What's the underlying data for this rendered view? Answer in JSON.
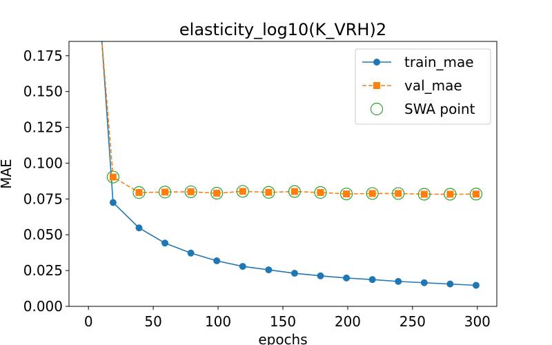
{
  "chart_data": {
    "type": "line",
    "title": "elasticity_log10(K_VRH)2",
    "xlabel": "epochs",
    "ylabel": "MAE",
    "xlim": [
      -15,
      315
    ],
    "ylim": [
      0,
      0.185
    ],
    "xticks": [
      0,
      50,
      100,
      150,
      200,
      250,
      300
    ],
    "yticks": [
      0.0,
      0.025,
      0.05,
      0.075,
      0.1,
      0.125,
      0.15,
      0.175
    ],
    "xtick_labels": [
      "0",
      "50",
      "100",
      "150",
      "200",
      "250",
      "300"
    ],
    "ytick_labels": [
      "0.000",
      "0.025",
      "0.050",
      "0.075",
      "0.100",
      "0.125",
      "0.150",
      "0.175"
    ],
    "grid": false,
    "legend_position": "top-right",
    "series": [
      {
        "name": "train_mae",
        "color": "#1f77b4",
        "marker": "circle",
        "linestyle": "solid",
        "x": [
          0,
          19,
          39,
          59,
          79,
          99,
          119,
          139,
          159,
          179,
          199,
          219,
          239,
          259,
          279,
          299
        ],
        "y": [
          0.32,
          0.0725,
          0.0548,
          0.0442,
          0.0372,
          0.0318,
          0.0279,
          0.0255,
          0.0231,
          0.0213,
          0.0198,
          0.0187,
          0.0174,
          0.0165,
          0.0156,
          0.0147
        ]
      },
      {
        "name": "val_mae",
        "color": "#ff7f0e",
        "marker": "square",
        "linestyle": "dashed",
        "x": [
          0,
          19,
          39,
          59,
          79,
          99,
          119,
          139,
          159,
          179,
          199,
          219,
          239,
          259,
          279,
          299
        ],
        "y": [
          0.3,
          0.0903,
          0.0795,
          0.0798,
          0.08,
          0.079,
          0.0803,
          0.0796,
          0.0802,
          0.0795,
          0.0785,
          0.0788,
          0.0788,
          0.0783,
          0.0783,
          0.0784
        ]
      },
      {
        "name": "SWA point",
        "color": "#2ca02c",
        "marker": "open-circle",
        "linestyle": "none",
        "x": [
          19,
          39,
          59,
          79,
          99,
          119,
          139,
          159,
          179,
          199,
          219,
          239,
          259,
          279,
          299
        ],
        "y": [
          0.0903,
          0.0795,
          0.0798,
          0.08,
          0.079,
          0.0803,
          0.0796,
          0.0802,
          0.0795,
          0.0785,
          0.0788,
          0.0788,
          0.0783,
          0.0783,
          0.0784
        ]
      }
    ]
  }
}
